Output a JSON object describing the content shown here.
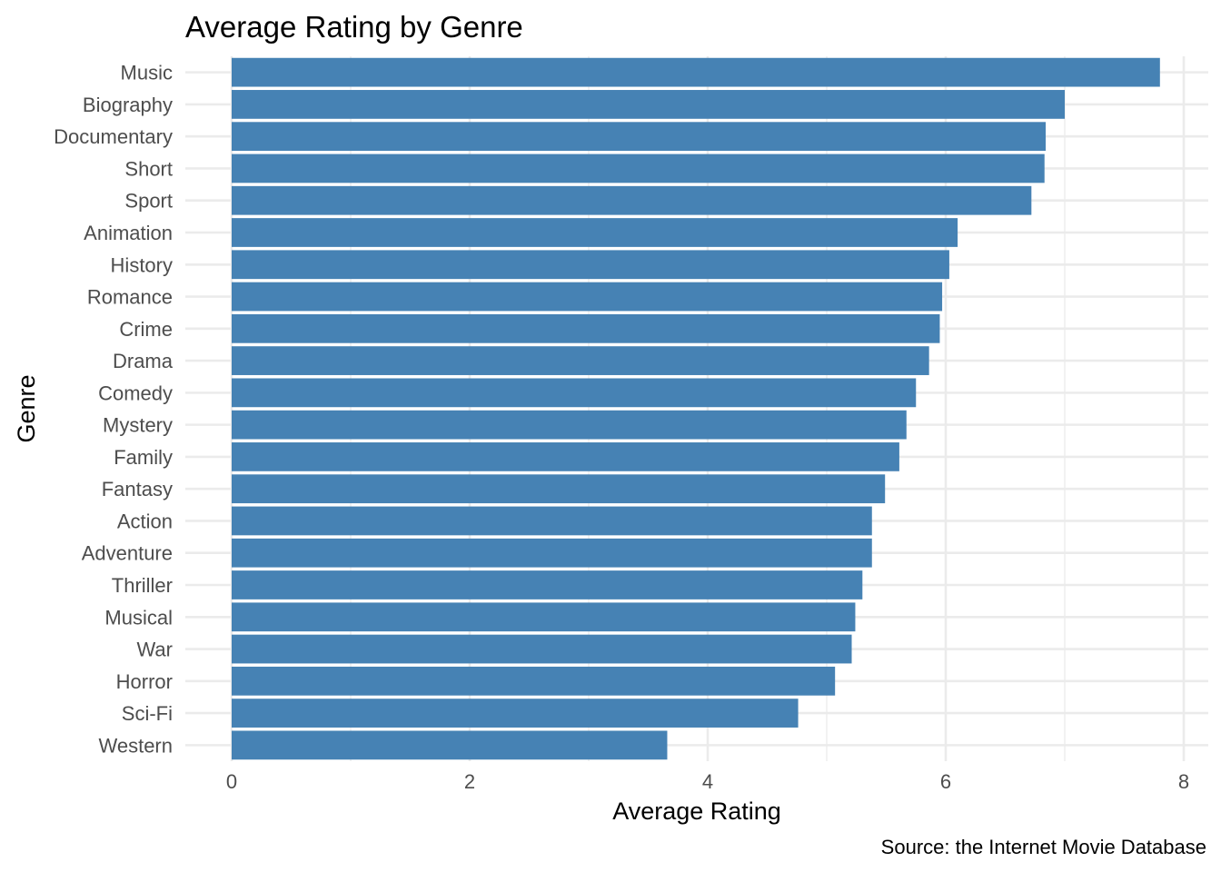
{
  "chart_data": {
    "type": "bar",
    "orientation": "horizontal",
    "title": "Average Rating by Genre",
    "xlabel": "Average Rating",
    "ylabel": "Genre",
    "caption": "Source: the Internet Movie Database",
    "xlim": [
      0,
      8
    ],
    "xticks": [
      0,
      2,
      4,
      6,
      8
    ],
    "grid": true,
    "legend": "none",
    "bar_color": "#4682b4",
    "categories": [
      "Music",
      "Biography",
      "Documentary",
      "Short",
      "Sport",
      "Animation",
      "History",
      "Romance",
      "Crime",
      "Drama",
      "Comedy",
      "Mystery",
      "Family",
      "Fantasy",
      "Action",
      "Adventure",
      "Thriller",
      "Musical",
      "War",
      "Horror",
      "Sci-Fi",
      "Western"
    ],
    "values": [
      7.8,
      7.0,
      6.84,
      6.83,
      6.72,
      6.1,
      6.03,
      5.97,
      5.95,
      5.86,
      5.75,
      5.67,
      5.61,
      5.49,
      5.38,
      5.38,
      5.3,
      5.24,
      5.21,
      5.07,
      4.76,
      3.66
    ]
  }
}
